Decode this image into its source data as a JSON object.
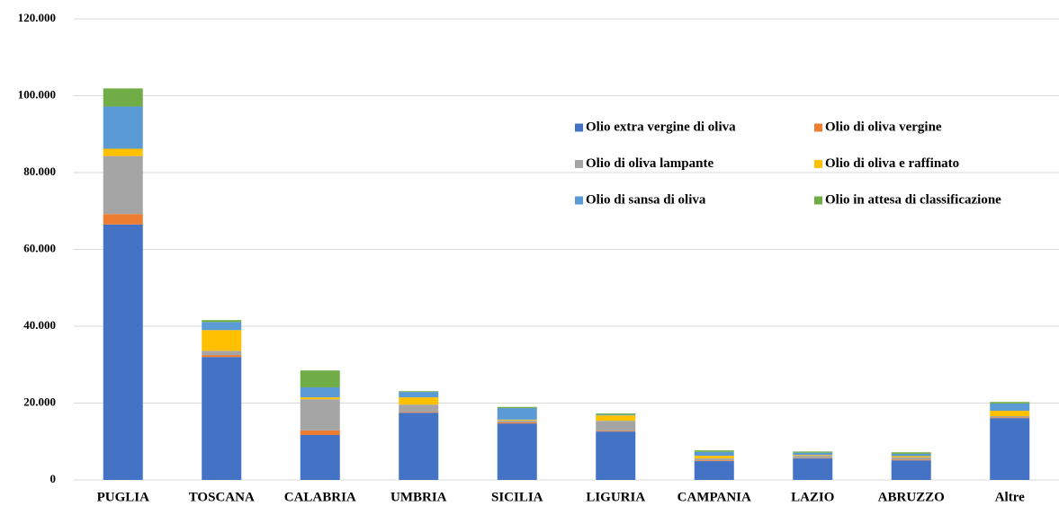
{
  "chart_data": {
    "type": "stacked_bar",
    "categories": [
      "PUGLIA",
      "TOSCANA",
      "CALABRIA",
      "UMBRIA",
      "SICILIA",
      "LIGURIA",
      "CAMPANIA",
      "LAZIO",
      "ABRUZZO",
      "Altre"
    ],
    "series": [
      {
        "name": "Olio extra vergine di oliva",
        "color": "#4472c4",
        "values": [
          66500,
          32000,
          11700,
          17500,
          14700,
          12600,
          4900,
          5600,
          5100,
          16100
        ]
      },
      {
        "name": "Olio di oliva vergine",
        "color": "#ed7d31",
        "values": [
          2700,
          500,
          1200,
          200,
          300,
          200,
          200,
          100,
          200,
          200
        ]
      },
      {
        "name": "Olio di oliva lampante",
        "color": "#a5a5a5",
        "values": [
          15100,
          1100,
          8100,
          1900,
          500,
          2600,
          500,
          600,
          600,
          300
        ]
      },
      {
        "name": "Olio di oliva e raffinato",
        "color": "#ffc000",
        "values": [
          1900,
          5400,
          500,
          1900,
          200,
          1400,
          700,
          200,
          300,
          1400
        ]
      },
      {
        "name": "Olio di sansa di oliva",
        "color": "#5b9bd5",
        "values": [
          11000,
          2100,
          2600,
          1400,
          3000,
          200,
          1000,
          600,
          600,
          1900
        ]
      },
      {
        "name": "Olio in attesa di classificazione",
        "color": "#70ad47",
        "values": [
          4700,
          500,
          4400,
          200,
          300,
          300,
          400,
          300,
          400,
          400
        ]
      }
    ],
    "ylim": [
      0,
      120000
    ],
    "yticks": [
      0,
      {
        "value": 20000,
        "label": "20.000"
      },
      {
        "value": 40000,
        "label": "40.000"
      },
      {
        "value": 60000,
        "label": "60.000"
      },
      {
        "value": 80000,
        "label": "80.000"
      },
      {
        "value": 100000,
        "label": "100.000"
      },
      {
        "value": 120000,
        "label": "120.000"
      }
    ],
    "grid": true
  }
}
